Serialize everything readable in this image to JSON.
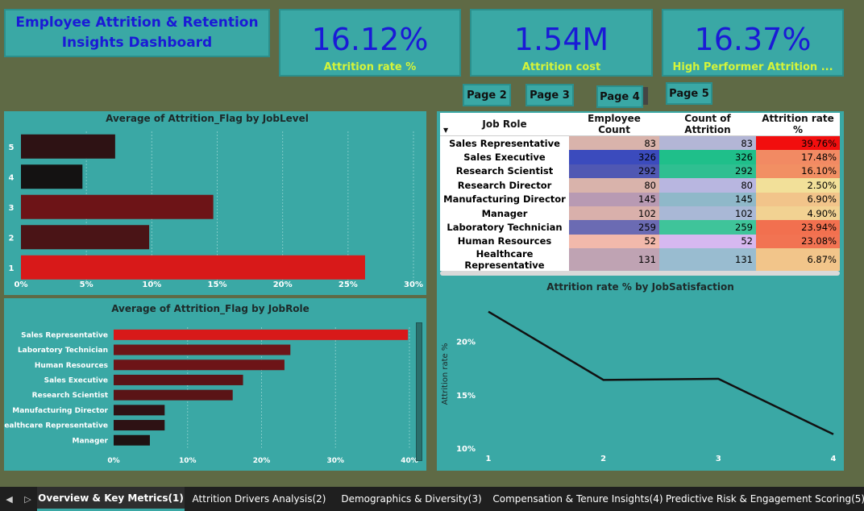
{
  "header": {
    "title_line1": "Employee Attrition & Retention",
    "title_line2": "Insights Dashboard"
  },
  "kpis": [
    {
      "value": "16.12%",
      "label": "Attrition rate %"
    },
    {
      "value": "1.54M",
      "label": "Attrition cost"
    },
    {
      "value": "16.37%",
      "label": "High Performer Attrition ..."
    }
  ],
  "page_buttons": [
    "Page 2",
    "Page 3",
    "Page 4",
    "Page 5"
  ],
  "joblevel_chart": {
    "title": "Average of Attrition_Flag by JobLevel",
    "categories": [
      "5",
      "4",
      "3",
      "2",
      "1"
    ],
    "values": [
      7.2,
      4.7,
      14.7,
      9.8,
      26.3
    ],
    "colors": [
      "#2e1214",
      "#141212",
      "#6d1417",
      "#4a1416",
      "#d81919"
    ],
    "x_ticks": [
      "0%",
      "5%",
      "10%",
      "15%",
      "20%",
      "25%",
      "30%"
    ],
    "xmax": 30
  },
  "jobrole_chart": {
    "title": "Average of Attrition_Flag by JobRole",
    "categories": [
      "Sales Representative",
      "Laboratory Technician",
      "Human Resources",
      "Sales Executive",
      "Research Scientist",
      "Manufacturing Director",
      "Healthcare Representative",
      "Manager"
    ],
    "values": [
      39.8,
      23.9,
      23.1,
      17.5,
      16.1,
      6.9,
      6.9,
      4.9
    ],
    "colors": [
      "#d81919",
      "#6d1417",
      "#6d1417",
      "#5a1416",
      "#5a1416",
      "#2e1214",
      "#2e1214",
      "#1e1212"
    ],
    "x_ticks": [
      "0%",
      "10%",
      "20%",
      "30%",
      "40%"
    ],
    "xmax": 40
  },
  "table": {
    "headers": [
      "Job Role",
      "Employee Count",
      "Count of Attrition",
      "Attrition rate %"
    ],
    "rows": [
      {
        "role": "Sales Representative",
        "emp": "83",
        "attr": "83",
        "rate": "39.76%",
        "c1": "#d9b3ab",
        "c2": "#b3b6d6",
        "c3": "#f20e0e"
      },
      {
        "role": "Sales Executive",
        "emp": "326",
        "attr": "326",
        "rate": "17.48%",
        "c1": "#3b4bbd",
        "c2": "#1fbf8a",
        "c3": "#f28a63"
      },
      {
        "role": "Research Scientist",
        "emp": "292",
        "attr": "292",
        "rate": "16.10%",
        "c1": "#5058b3",
        "c2": "#2fbf91",
        "c3": "#f28f63"
      },
      {
        "role": "Research Director",
        "emp": "80",
        "attr": "80",
        "rate": "2.50%",
        "c1": "#d9b3ab",
        "c2": "#b8b6e0",
        "c3": "#f2e099"
      },
      {
        "role": "Manufacturing Director",
        "emp": "145",
        "attr": "145",
        "rate": "6.90%",
        "c1": "#b89ab3",
        "c2": "#8fb8c9",
        "c3": "#f2c48a"
      },
      {
        "role": "Manager",
        "emp": "102",
        "attr": "102",
        "rate": "4.90%",
        "c1": "#d9b0ab",
        "c2": "#a9b8d6",
        "c3": "#f2d292"
      },
      {
        "role": "Laboratory Technician",
        "emp": "259",
        "attr": "259",
        "rate": "23.94%",
        "c1": "#6b6bb3",
        "c2": "#3fc49a",
        "c3": "#f2704f"
      },
      {
        "role": "Human Resources",
        "emp": "52",
        "attr": "52",
        "rate": "23.08%",
        "c1": "#f2b9ab",
        "c2": "#d6b8f0",
        "c3": "#f27352"
      },
      {
        "role": "Healthcare Representative",
        "emp": "131",
        "attr": "131",
        "rate": "6.87%",
        "c1": "#bfa3b3",
        "c2": "#99bcd0",
        "c3": "#f2c58a"
      }
    ]
  },
  "satisfaction_chart": {
    "title": "Attrition rate % by JobSatisfaction",
    "ylabel": "Attrition rate %",
    "x": [
      "1",
      "2",
      "3",
      "4"
    ],
    "values": [
      22.8,
      16.4,
      16.5,
      11.3
    ],
    "y_ticks": [
      {
        "v": 20,
        "label": "20%"
      },
      {
        "v": 15,
        "label": "15%"
      },
      {
        "v": 10,
        "label": "10%"
      }
    ],
    "ymin": 10,
    "ymax": 23
  },
  "tabs": [
    "Overview & Key Metrics(1)",
    "Attrition Drivers Analysis(2)",
    "Demographics & Diversity(3)",
    "Compensation & Tenure Insights(4)",
    "Predictive Risk & Engagement Scoring(5)"
  ]
}
